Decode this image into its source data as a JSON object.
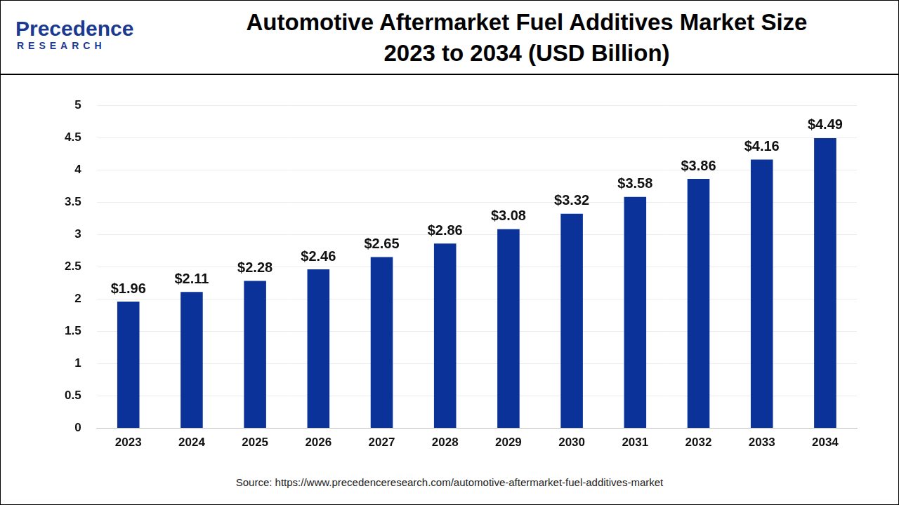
{
  "logo": {
    "name": "Precedence",
    "tagline": "RESEARCH"
  },
  "chart_data": {
    "type": "bar",
    "title": [
      "Automotive Aftermarket Fuel Additives Market Size",
      "2023 to 2034 (USD Billion)"
    ],
    "categories": [
      "2023",
      "2024",
      "2025",
      "2026",
      "2027",
      "2028",
      "2029",
      "2030",
      "2031",
      "2032",
      "2033",
      "2034"
    ],
    "values": [
      1.96,
      2.11,
      2.28,
      2.46,
      2.65,
      2.86,
      3.08,
      3.32,
      3.58,
      3.86,
      4.16,
      4.49
    ],
    "value_labels": [
      "$1.96",
      "$2.11",
      "$2.28",
      "$2.46",
      "$2.65",
      "$2.86",
      "$3.08",
      "$3.32",
      "$3.58",
      "$3.86",
      "$4.16",
      "$4.49"
    ],
    "color": "#0a3299",
    "ylim": [
      0,
      5
    ],
    "yticks": [
      0,
      0.5,
      1,
      1.5,
      2,
      2.5,
      3,
      3.5,
      4,
      4.5,
      5
    ],
    "grid": true,
    "data_labels": true,
    "source": "Source: https://www.precedenceresearch.com/automotive-aftermarket-fuel-additives-market"
  }
}
